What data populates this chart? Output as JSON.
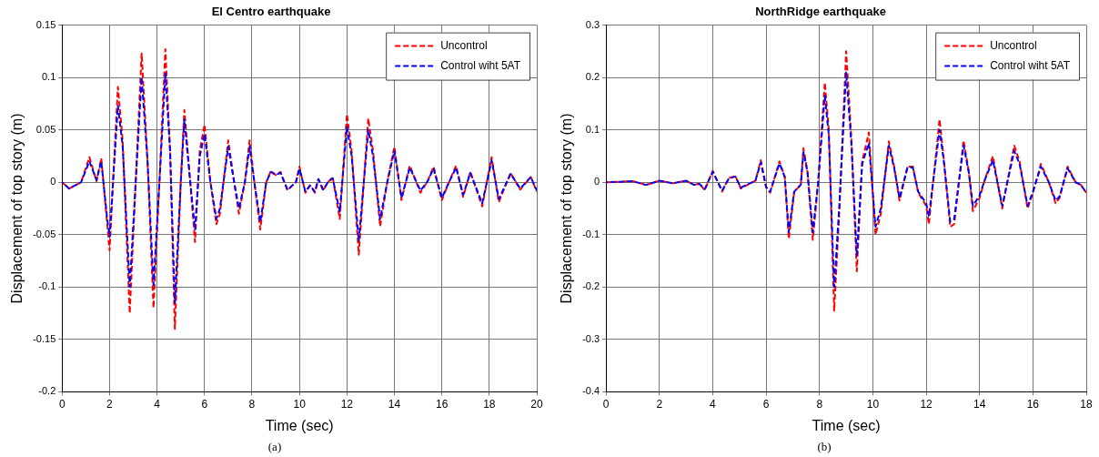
{
  "chart_data": [
    {
      "type": "line",
      "title": "El Centro earthquake",
      "xlabel": "Time (sec)",
      "ylabel": "Displacement of top story (m)",
      "annotations": [
        "(a)"
      ],
      "legend": "top right",
      "grid": true,
      "marker": "none",
      "line_style": "dashed",
      "xlim": [
        0,
        20
      ],
      "xticks": [
        0,
        2,
        4,
        6,
        8,
        10,
        12,
        14,
        16,
        18,
        20
      ],
      "ylim": [
        -0.2,
        0.15
      ],
      "yticks": [
        -0.2,
        -0.15,
        -0.1,
        -0.05,
        0,
        0.05,
        0.1,
        0.15
      ],
      "x": [
        0,
        0.3,
        0.8,
        1.15,
        1.45,
        1.65,
        1.9,
        2.0,
        2.35,
        2.55,
        2.85,
        3.1,
        3.35,
        3.6,
        3.85,
        4.1,
        4.35,
        4.55,
        4.75,
        5.0,
        5.15,
        5.4,
        5.6,
        5.8,
        6.0,
        6.25,
        6.5,
        6.65,
        7.0,
        7.25,
        7.45,
        7.7,
        7.9,
        8.1,
        8.35,
        8.6,
        8.8,
        9.0,
        9.2,
        9.5,
        9.7,
        9.85,
        10.0,
        10.25,
        10.45,
        10.65,
        10.8,
        11.0,
        11.2,
        11.4,
        11.7,
        12.0,
        12.2,
        12.5,
        12.9,
        13.1,
        13.4,
        13.7,
        14.0,
        14.3,
        14.65,
        15.1,
        15.4,
        15.65,
        16.0,
        16.3,
        16.6,
        16.9,
        17.2,
        17.7,
        18.1,
        18.4,
        18.9,
        19.3,
        19.75,
        20
      ],
      "series": [
        {
          "name": "Uncontrol",
          "color": "#ff0000",
          "values": [
            0,
            -0.006,
            0,
            0.024,
            0.001,
            0.023,
            -0.04,
            -0.065,
            0.091,
            0.04,
            -0.125,
            0,
            0.123,
            0.02,
            -0.12,
            0,
            0.127,
            0.03,
            -0.14,
            0,
            0.069,
            0,
            -0.057,
            0.03,
            0.055,
            0,
            -0.04,
            -0.03,
            0.04,
            0,
            -0.03,
            0,
            0.04,
            0,
            -0.045,
            0,
            0.011,
            0.007,
            0.01,
            -0.008,
            -0.003,
            0,
            0.015,
            -0.01,
            -0.003,
            -0.01,
            0.003,
            -0.008,
            0,
            0.005,
            -0.035,
            0.065,
            0.03,
            -0.069,
            0.061,
            0.03,
            -0.042,
            0,
            0.034,
            -0.017,
            0.016,
            -0.01,
            0.001,
            0.015,
            -0.017,
            0,
            0.016,
            -0.014,
            0.01,
            -0.023,
            0.024,
            -0.019,
            0.009,
            -0.007,
            0.005,
            -0.009
          ]
        },
        {
          "name": "Control wiht 5AT",
          "color": "#0000ff",
          "values": [
            0,
            -0.006,
            0,
            0.02,
            0.002,
            0.02,
            -0.035,
            -0.052,
            0.073,
            0.035,
            -0.1,
            0,
            0.1,
            0.02,
            -0.098,
            0,
            0.104,
            0.03,
            -0.115,
            0,
            0.06,
            0,
            -0.045,
            0.025,
            0.046,
            0,
            -0.035,
            -0.025,
            0.034,
            0,
            -0.025,
            0,
            0.034,
            0,
            -0.038,
            0,
            0.01,
            0.007,
            0.009,
            -0.007,
            -0.003,
            0,
            0.013,
            -0.009,
            -0.003,
            -0.009,
            0.003,
            -0.007,
            0,
            0.004,
            -0.028,
            0.053,
            0.025,
            -0.056,
            0.05,
            0.025,
            -0.035,
            0,
            0.03,
            -0.015,
            0.014,
            -0.008,
            0.001,
            0.013,
            -0.015,
            0,
            0.014,
            -0.012,
            0.009,
            -0.02,
            0.021,
            -0.016,
            0.008,
            -0.006,
            0.005,
            -0.008
          ]
        }
      ]
    },
    {
      "type": "line",
      "title": "NorthRidge earthquake",
      "xlabel": "Time (sec)",
      "ylabel": "Displacement of top story (m)",
      "annotations": [
        "(b)"
      ],
      "legend": "top right",
      "grid": true,
      "marker": "none",
      "line_style": "dashed",
      "xlim": [
        0,
        18
      ],
      "xticks": [
        0,
        2,
        4,
        6,
        8,
        10,
        12,
        14,
        16,
        18
      ],
      "ylim": [
        -0.4,
        0.3
      ],
      "yticks": [
        -0.4,
        -0.3,
        -0.2,
        -0.1,
        0,
        0.1,
        0.2,
        0.3
      ],
      "x": [
        0,
        1,
        1.5,
        2,
        2.5,
        3,
        3.3,
        3.5,
        3.7,
        4.0,
        4.35,
        4.6,
        4.85,
        5.05,
        5.4,
        5.6,
        5.8,
        6.0,
        6.15,
        6.5,
        6.7,
        6.85,
        7.05,
        7.2,
        7.3,
        7.4,
        7.55,
        7.75,
        7.95,
        8.2,
        8.35,
        8.55,
        8.75,
        9.0,
        9.2,
        9.4,
        9.6,
        9.85,
        10.1,
        10.3,
        10.6,
        10.8,
        11.0,
        11.3,
        11.5,
        11.7,
        12.0,
        12.1,
        12.5,
        12.65,
        12.9,
        13.05,
        13.4,
        13.6,
        13.75,
        14.0,
        14.2,
        14.5,
        14.85,
        15.3,
        15.5,
        15.8,
        16.0,
        16.3,
        16.6,
        16.85,
        17.0,
        17.3,
        17.6,
        17.8,
        18
      ],
      "series": [
        {
          "name": "Uncontrol",
          "color": "#ff0000",
          "values": [
            0,
            0.002,
            -0.005,
            0.003,
            -0.002,
            0.003,
            -0.005,
            -0.003,
            -0.015,
            0.022,
            -0.018,
            0.008,
            0.012,
            -0.012,
            -0.002,
            0.003,
            0.042,
            -0.01,
            -0.02,
            0.04,
            0.01,
            -0.108,
            -0.02,
            -0.01,
            -0.005,
            0.065,
            0.02,
            -0.11,
            0,
            0.19,
            0.1,
            -0.245,
            -0.05,
            0.25,
            0.08,
            -0.17,
            0.04,
            0.095,
            -0.1,
            -0.06,
            0.078,
            0.03,
            -0.035,
            0.03,
            0.03,
            -0.02,
            -0.045,
            -0.08,
            0.12,
            0.05,
            -0.085,
            -0.08,
            0.08,
            0.02,
            -0.055,
            -0.03,
            0.005,
            0.05,
            -0.05,
            0.07,
            0.04,
            -0.05,
            -0.02,
            0.035,
            0,
            -0.04,
            -0.03,
            0.03,
            0,
            -0.005,
            -0.02
          ]
        },
        {
          "name": "Control wiht 5AT",
          "color": "#0000ff",
          "values": [
            0,
            0.002,
            -0.005,
            0.003,
            -0.002,
            0.003,
            -0.005,
            -0.003,
            -0.013,
            0.02,
            -0.016,
            0.007,
            0.011,
            -0.01,
            -0.002,
            0.003,
            0.038,
            -0.009,
            -0.018,
            0.036,
            0.01,
            -0.095,
            -0.018,
            -0.01,
            -0.005,
            0.058,
            0.02,
            -0.095,
            0,
            0.165,
            0.09,
            -0.2,
            -0.04,
            0.21,
            0.07,
            -0.14,
            0.035,
            0.075,
            -0.085,
            -0.05,
            0.07,
            0.027,
            -0.03,
            0.028,
            0.028,
            -0.018,
            -0.04,
            -0.065,
            0.1,
            0.045,
            -0.075,
            -0.07,
            0.07,
            0.018,
            -0.045,
            -0.025,
            0.005,
            0.042,
            -0.045,
            0.06,
            0.035,
            -0.045,
            -0.018,
            0.03,
            0,
            -0.035,
            -0.027,
            0.027,
            0,
            -0.005,
            -0.02
          ]
        }
      ]
    }
  ]
}
